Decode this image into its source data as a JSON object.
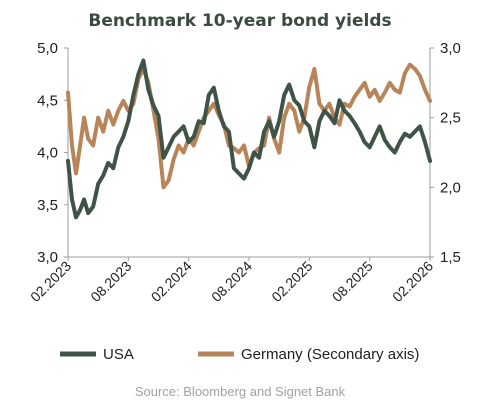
{
  "colors": {
    "usa": "#3f5347",
    "germany": "#b8855a",
    "title": "#3b4b40",
    "source": "#9aa6a0",
    "axis": "#9e9e9e"
  },
  "chart_data": {
    "type": "line",
    "title": "Benchmark 10-year bond yields",
    "source": "Source: Bloomberg and Signet Bank",
    "xlabel": "",
    "ylabel": "",
    "x_range": [
      0,
      36
    ],
    "x_ticks": [
      {
        "x": 0,
        "label": "02.2023"
      },
      {
        "x": 6,
        "label": "08.2023"
      },
      {
        "x": 12,
        "label": "02.2024"
      },
      {
        "x": 18,
        "label": "08.2024"
      },
      {
        "x": 24,
        "label": "02.2025"
      },
      {
        "x": 30,
        "label": "08.2025"
      },
      {
        "x": 36,
        "label": "02.2026"
      }
    ],
    "y_left": {
      "range": [
        3.0,
        5.0
      ],
      "ticks": [
        "3,0",
        "3,5",
        "4,0",
        "4,5",
        "5,0"
      ],
      "tick_values": [
        3.0,
        3.5,
        4.0,
        4.5,
        5.0
      ]
    },
    "y_right": {
      "range": [
        1.5,
        3.0
      ],
      "ticks": [
        "1,5",
        "2,0",
        "2,5",
        "3,0"
      ],
      "tick_values": [
        1.5,
        2.0,
        2.5,
        3.0
      ]
    },
    "grid": false,
    "legend_position": "bottom",
    "series": [
      {
        "name": "USA",
        "axis": "left",
        "x": [
          0,
          0.4,
          0.8,
          1.2,
          1.6,
          2,
          2.5,
          3,
          3.5,
          4,
          4.5,
          5,
          5.5,
          6,
          6.5,
          7,
          7.5,
          8,
          8.5,
          9,
          9.5,
          10,
          10.5,
          11,
          11.5,
          12,
          12.5,
          13,
          13.5,
          14,
          14.5,
          15,
          15.5,
          16,
          16.5,
          17,
          17.5,
          18,
          18.5,
          19,
          19.5,
          20,
          20.5,
          21,
          21.5,
          22,
          22.5,
          23,
          23.5,
          24,
          24.5,
          25,
          25.5,
          26,
          26.5,
          27,
          27.5,
          28,
          28.5,
          29,
          29.5,
          30,
          30.5,
          31,
          31.5,
          32,
          32.5,
          33,
          33.5,
          34,
          34.5,
          35,
          35.5,
          36
        ],
        "values": [
          3.92,
          3.55,
          3.38,
          3.45,
          3.55,
          3.42,
          3.48,
          3.7,
          3.78,
          3.9,
          3.85,
          4.05,
          4.15,
          4.3,
          4.55,
          4.75,
          4.88,
          4.6,
          4.45,
          4.35,
          3.95,
          4.05,
          4.15,
          4.2,
          4.25,
          4.1,
          4.15,
          4.3,
          4.28,
          4.55,
          4.62,
          4.4,
          4.25,
          4.2,
          3.85,
          3.8,
          3.75,
          3.85,
          4.0,
          3.95,
          4.2,
          4.3,
          4.15,
          4.3,
          4.55,
          4.65,
          4.5,
          4.45,
          4.3,
          4.25,
          4.05,
          4.3,
          4.4,
          4.35,
          4.28,
          4.5,
          4.4,
          4.35,
          4.28,
          4.2,
          4.1,
          4.05,
          4.15,
          4.25,
          4.12,
          4.05,
          4.0,
          4.1,
          4.18,
          4.15,
          4.2,
          4.25,
          4.1,
          3.92
        ]
      },
      {
        "name": "Germany (Secondary axis)",
        "axis": "right",
        "x": [
          0,
          0.4,
          0.8,
          1.2,
          1.6,
          2,
          2.5,
          3,
          3.5,
          4,
          4.5,
          5,
          5.5,
          6,
          6.5,
          7,
          7.5,
          8,
          8.5,
          9,
          9.5,
          10,
          10.5,
          11,
          11.5,
          12,
          12.5,
          13,
          13.5,
          14,
          14.5,
          15,
          15.5,
          16,
          16.5,
          17,
          17.5,
          18,
          18.5,
          19,
          19.5,
          20,
          20.5,
          21,
          21.5,
          22,
          22.5,
          23,
          23.5,
          24,
          24.5,
          25,
          25.5,
          26,
          26.5,
          27,
          27.5,
          28,
          28.5,
          29,
          29.5,
          30,
          30.5,
          31,
          31.5,
          32,
          32.5,
          33,
          33.5,
          34,
          34.5,
          35,
          35.5,
          36
        ],
        "values": [
          2.68,
          2.3,
          2.1,
          2.3,
          2.5,
          2.35,
          2.3,
          2.5,
          2.4,
          2.55,
          2.45,
          2.55,
          2.62,
          2.55,
          2.6,
          2.78,
          2.85,
          2.75,
          2.55,
          2.35,
          2.0,
          2.05,
          2.2,
          2.3,
          2.25,
          2.35,
          2.3,
          2.4,
          2.5,
          2.55,
          2.6,
          2.52,
          2.45,
          2.3,
          2.28,
          2.25,
          2.3,
          2.15,
          2.25,
          2.28,
          2.3,
          2.5,
          2.35,
          2.25,
          2.5,
          2.6,
          2.55,
          2.4,
          2.5,
          2.72,
          2.85,
          2.6,
          2.55,
          2.6,
          2.5,
          2.45,
          2.6,
          2.58,
          2.65,
          2.7,
          2.75,
          2.65,
          2.7,
          2.62,
          2.68,
          2.75,
          2.7,
          2.68,
          2.82,
          2.88,
          2.85,
          2.8,
          2.7,
          2.62
        ]
      }
    ]
  }
}
